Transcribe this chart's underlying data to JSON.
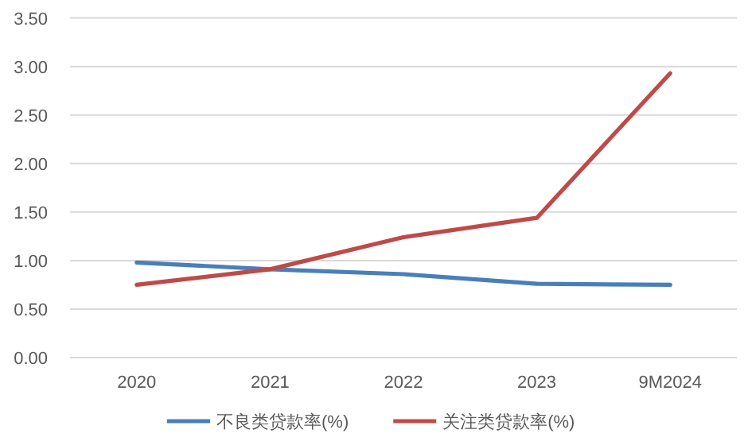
{
  "chart_data": {
    "type": "line",
    "categories": [
      "2020",
      "2021",
      "2022",
      "2023",
      "9M2024"
    ],
    "series": [
      {
        "name": "不良类贷款率(%)",
        "color": "#4a7ebb",
        "values": [
          0.98,
          0.91,
          0.86,
          0.76,
          0.75
        ]
      },
      {
        "name": "关注类贷款率(%)",
        "color": "#be4b48",
        "values": [
          0.75,
          0.91,
          1.24,
          1.44,
          2.93
        ]
      }
    ],
    "ylim": [
      0,
      3.5
    ],
    "yticks": [
      {
        "value": 0,
        "label": "0.00"
      },
      {
        "value": 0.5,
        "label": "0.50"
      },
      {
        "value": 1,
        "label": "1.00"
      },
      {
        "value": 1.5,
        "label": "1.50"
      },
      {
        "value": 2,
        "label": "2.00"
      },
      {
        "value": 2.5,
        "label": "2.50"
      },
      {
        "value": 3,
        "label": "3.00"
      },
      {
        "value": 3.5,
        "label": "3.50"
      }
    ],
    "grid": "y",
    "legend": "bottom",
    "marker": "none",
    "line_style": "solid"
  }
}
